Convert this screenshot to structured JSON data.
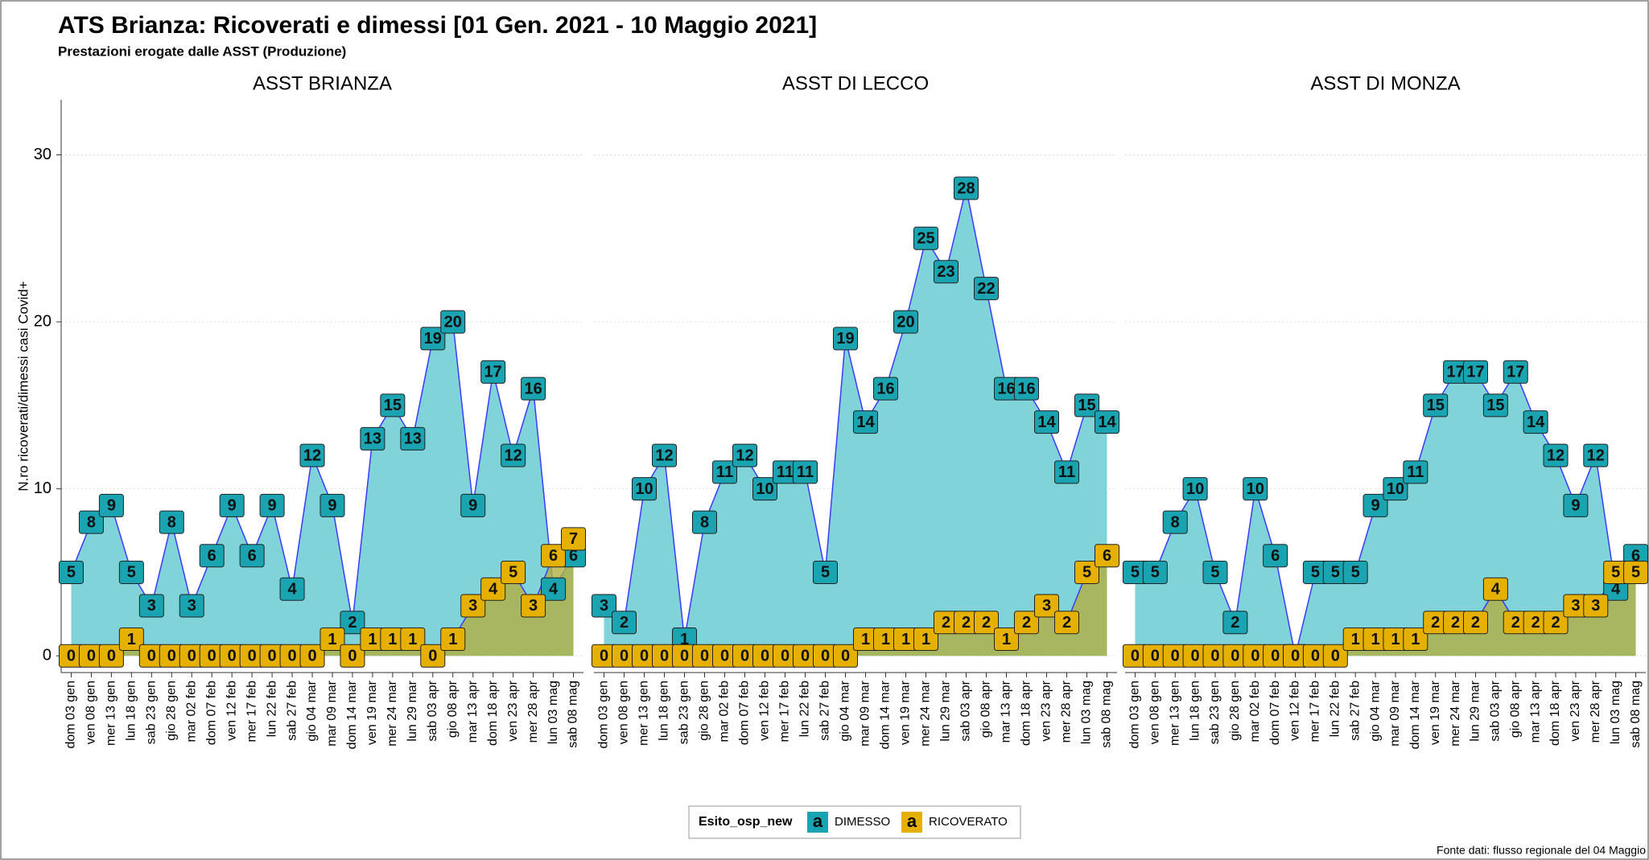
{
  "title": "ATS Brianza: Ricoverati e dimessi [01 Gen. 2021 - 10 Maggio 2021]",
  "subtitle": "Prestazioni erogate dalle ASST (Produzione)",
  "y_label": "N.ro ricoverati/dimessi casi Covid+",
  "legend": {
    "title": "Esito_osp_new",
    "key_glyph": "a"
  },
  "source": "Fonte dati: flusso regionale del 04 Maggio",
  "chart_data": [
    {
      "type": "area",
      "title": "ASST BRIANZA",
      "categories": [
        "dom 03 gen",
        "ven 08 gen",
        "mer 13 gen",
        "lun 18 gen",
        "sab 23 gen",
        "gio 28 gen",
        "mar 02 feb",
        "dom 07 feb",
        "ven 12 feb",
        "mer 17 feb",
        "lun 22 feb",
        "sab 27 feb",
        "gio 04 mar",
        "mar 09 mar",
        "dom 14 mar",
        "ven 19 mar",
        "mer 24 mar",
        "lun 29 mar",
        "sab 03 apr",
        "gio 08 apr",
        "mar 13 apr",
        "dom 18 apr",
        "ven 23 apr",
        "mer 28 apr",
        "lun 03 mag",
        "sab 08 mag"
      ],
      "series": [
        {
          "name": "DIMESSO",
          "color": "#1aa3b0",
          "values": [
            5,
            8,
            9,
            5,
            3,
            8,
            3,
            6,
            9,
            6,
            9,
            4,
            12,
            9,
            2,
            13,
            15,
            13,
            19,
            20,
            9,
            17,
            12,
            16,
            4,
            6
          ]
        },
        {
          "name": "RICOVERATO",
          "color": "#e6b000",
          "values": [
            0,
            0,
            0,
            1,
            0,
            0,
            0,
            0,
            0,
            0,
            0,
            0,
            0,
            1,
            0,
            1,
            1,
            1,
            0,
            1,
            3,
            4,
            5,
            3,
            6,
            7
          ]
        }
      ],
      "ylim": [
        -1,
        33.3
      ],
      "yticks": [
        0,
        10,
        20,
        30
      ],
      "grid": true
    },
    {
      "type": "area",
      "title": "ASST DI LECCO",
      "categories": [
        "dom 03 gen",
        "ven 08 gen",
        "mer 13 gen",
        "lun 18 gen",
        "sab 23 gen",
        "gio 28 gen",
        "mar 02 feb",
        "dom 07 feb",
        "ven 12 feb",
        "mer 17 feb",
        "lun 22 feb",
        "sab 27 feb",
        "gio 04 mar",
        "mar 09 mar",
        "dom 14 mar",
        "ven 19 mar",
        "mer 24 mar",
        "lun 29 mar",
        "sab 03 apr",
        "gio 08 apr",
        "mar 13 apr",
        "dom 18 apr",
        "ven 23 apr",
        "mer 28 apr",
        "lun 03 mag",
        "sab 08 mag"
      ],
      "series": [
        {
          "name": "DIMESSO",
          "color": "#1aa3b0",
          "values": [
            3,
            2,
            10,
            12,
            1,
            8,
            11,
            12,
            10,
            11,
            11,
            5,
            19,
            14,
            16,
            20,
            25,
            23,
            28,
            22,
            16,
            16,
            14,
            11,
            15,
            14
          ]
        },
        {
          "name": "RICOVERATO",
          "color": "#e6b000",
          "values": [
            0,
            0,
            0,
            0,
            0,
            0,
            0,
            0,
            0,
            0,
            0,
            0,
            0,
            1,
            1,
            1,
            1,
            2,
            2,
            2,
            1,
            2,
            3,
            2,
            5,
            6
          ]
        }
      ],
      "ylim": [
        -1,
        33.3
      ],
      "yticks": [
        0,
        10,
        20,
        30
      ],
      "grid": true
    },
    {
      "type": "area",
      "title": "ASST DI MONZA",
      "categories": [
        "dom 03 gen",
        "ven 08 gen",
        "mer 13 gen",
        "lun 18 gen",
        "sab 23 gen",
        "gio 28 gen",
        "mar 02 feb",
        "dom 07 feb",
        "ven 12 feb",
        "mer 17 feb",
        "lun 22 feb",
        "sab 27 feb",
        "gio 04 mar",
        "mar 09 mar",
        "dom 14 mar",
        "ven 19 mar",
        "mer 24 mar",
        "lun 29 mar",
        "sab 03 apr",
        "gio 08 apr",
        "mar 13 apr",
        "dom 18 apr",
        "ven 23 apr",
        "mer 28 apr",
        "lun 03 mag",
        "sab 08 mag"
      ],
      "series": [
        {
          "name": "DIMESSO",
          "color": "#1aa3b0",
          "values": [
            5,
            5,
            8,
            10,
            5,
            2,
            10,
            6,
            0,
            5,
            5,
            5,
            9,
            10,
            11,
            15,
            17,
            17,
            15,
            17,
            14,
            12,
            9,
            12,
            4,
            6
          ]
        },
        {
          "name": "RICOVERATO",
          "color": "#e6b000",
          "values": [
            0,
            0,
            0,
            0,
            0,
            0,
            0,
            0,
            0,
            0,
            0,
            1,
            1,
            1,
            1,
            2,
            2,
            2,
            4,
            2,
            2,
            2,
            3,
            3,
            5,
            5
          ]
        }
      ],
      "ylim": [
        -1,
        33.3
      ],
      "yticks": [
        0,
        10,
        20,
        30
      ],
      "grid": true
    }
  ]
}
